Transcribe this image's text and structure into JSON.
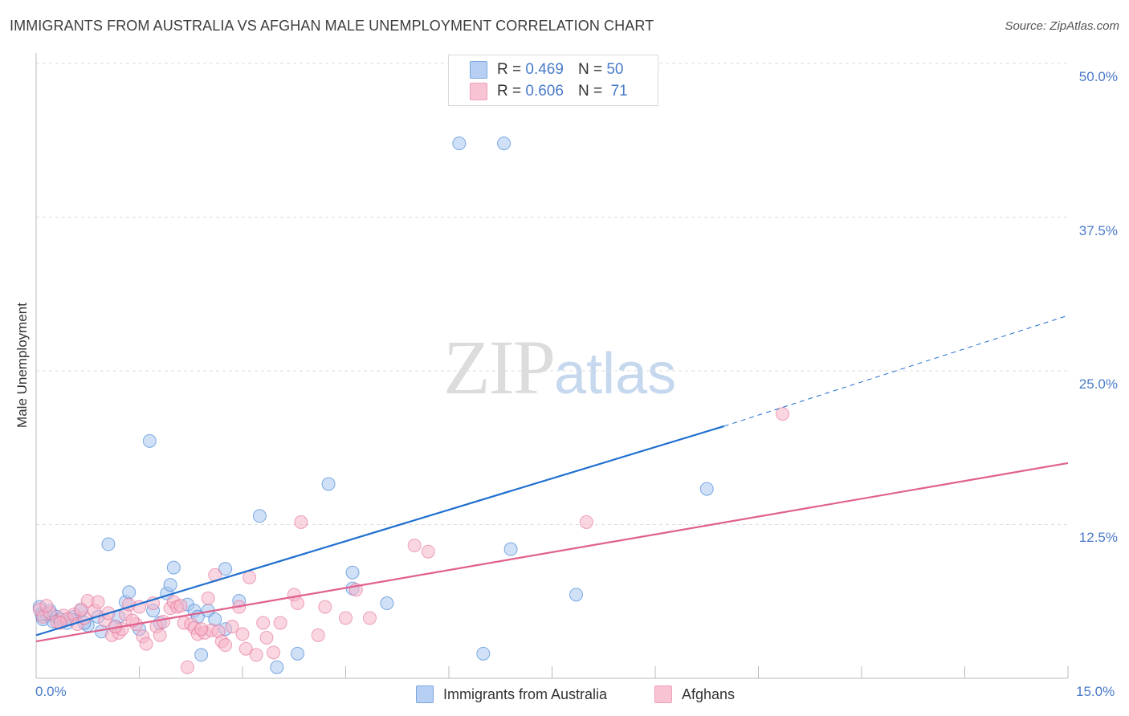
{
  "title": "IMMIGRANTS FROM AUSTRALIA VS AFGHAN MALE UNEMPLOYMENT CORRELATION CHART",
  "source": "Source: ZipAtlas.com",
  "watermark": {
    "zip": "ZIP",
    "atlas": "atlas"
  },
  "legend_top": {
    "rows": [
      {
        "r_label": "R =",
        "r_value": "0.469",
        "n_label": "N =",
        "n_value": "50"
      },
      {
        "r_label": "R =",
        "r_value": "0.606",
        "n_label": "N =",
        "n_value": "71"
      }
    ]
  },
  "colors": {
    "blue": "#1f6fcf",
    "blue_fill": "#a9c6ee",
    "pink": "#e0608c",
    "pink_fill": "#f6b4c8",
    "grid": "#dddddd",
    "axis": "#bbbbbb",
    "tick_text": "#4a7bc8"
  },
  "chart_data": {
    "type": "scatter",
    "title": "IMMIGRANTS FROM AUSTRALIA VS AFGHAN MALE UNEMPLOYMENT CORRELATION CHART",
    "xlabel": "",
    "ylabel": "Male Unemployment",
    "xlim": [
      0,
      15
    ],
    "ylim": [
      0,
      50
    ],
    "x_tick_labels": [
      "0.0%",
      "15.0%"
    ],
    "y_ticks": [
      12.5,
      25.0,
      37.5,
      50.0
    ],
    "y_tick_labels": [
      "12.5%",
      "25.0%",
      "37.5%",
      "50.0%"
    ],
    "grid": true,
    "legend": "bottom-center",
    "series": [
      {
        "name": "Immigrants from Australia",
        "color": "#1f6fcf",
        "fill": "#a9c6ee",
        "trend": {
          "x0": 0,
          "y0": 3.5,
          "x1": 10.0,
          "y1": 20.5,
          "dash_to_x": 15.0,
          "dash_to_y": 29.5
        },
        "points": [
          [
            0.05,
            5.8
          ],
          [
            0.1,
            4.8
          ],
          [
            0.15,
            5.2
          ],
          [
            0.2,
            5.5
          ],
          [
            0.25,
            4.6
          ],
          [
            0.3,
            5.0
          ],
          [
            0.35,
            4.8
          ],
          [
            0.45,
            4.5
          ],
          [
            0.55,
            5.0
          ],
          [
            0.65,
            5.5
          ],
          [
            0.75,
            4.3
          ],
          [
            0.9,
            5.0
          ],
          [
            0.95,
            3.8
          ],
          [
            1.05,
            10.9
          ],
          [
            1.15,
            4.2
          ],
          [
            1.2,
            5.0
          ],
          [
            1.3,
            6.2
          ],
          [
            1.35,
            7.0
          ],
          [
            1.5,
            4.0
          ],
          [
            1.65,
            19.3
          ],
          [
            1.7,
            5.5
          ],
          [
            1.8,
            4.5
          ],
          [
            1.9,
            6.9
          ],
          [
            1.95,
            7.6
          ],
          [
            2.0,
            9.0
          ],
          [
            2.2,
            6.0
          ],
          [
            2.3,
            5.5
          ],
          [
            2.35,
            5.0
          ],
          [
            2.4,
            1.9
          ],
          [
            2.5,
            5.5
          ],
          [
            2.6,
            4.8
          ],
          [
            2.75,
            4.0
          ],
          [
            2.75,
            8.9
          ],
          [
            2.95,
            6.3
          ],
          [
            3.25,
            13.2
          ],
          [
            3.5,
            0.9
          ],
          [
            3.8,
            2.0
          ],
          [
            4.25,
            15.8
          ],
          [
            4.6,
            7.3
          ],
          [
            4.6,
            8.6
          ],
          [
            5.1,
            6.1
          ],
          [
            6.15,
            43.5
          ],
          [
            6.5,
            2.0
          ],
          [
            6.8,
            43.5
          ],
          [
            6.9,
            10.5
          ],
          [
            7.85,
            6.8
          ],
          [
            9.75,
            15.4
          ],
          [
            0.08,
            5.2
          ],
          [
            0.5,
            4.8
          ],
          [
            0.7,
            4.5
          ]
        ]
      },
      {
        "name": "Afghans",
        "color": "#e0608c",
        "fill": "#f6b4c8",
        "trend": {
          "x0": 0,
          "y0": 3.0,
          "x1": 15.0,
          "y1": 17.5
        },
        "points": [
          [
            0.05,
            5.6
          ],
          [
            0.1,
            5.0
          ],
          [
            0.2,
            5.3
          ],
          [
            0.3,
            4.6
          ],
          [
            0.4,
            5.1
          ],
          [
            0.45,
            4.8
          ],
          [
            0.55,
            5.2
          ],
          [
            0.6,
            4.4
          ],
          [
            0.7,
            4.9
          ],
          [
            0.75,
            6.3
          ],
          [
            0.85,
            5.5
          ],
          [
            0.9,
            6.2
          ],
          [
            1.0,
            4.7
          ],
          [
            1.05,
            5.3
          ],
          [
            1.1,
            3.5
          ],
          [
            1.2,
            3.7
          ],
          [
            1.25,
            4.0
          ],
          [
            1.3,
            5.2
          ],
          [
            1.35,
            6.0
          ],
          [
            1.45,
            4.4
          ],
          [
            1.5,
            5.8
          ],
          [
            1.55,
            3.4
          ],
          [
            1.6,
            2.8
          ],
          [
            1.7,
            6.1
          ],
          [
            1.75,
            4.2
          ],
          [
            1.8,
            3.5
          ],
          [
            1.85,
            4.6
          ],
          [
            1.95,
            5.7
          ],
          [
            2.0,
            6.2
          ],
          [
            2.05,
            5.8
          ],
          [
            2.1,
            5.9
          ],
          [
            2.15,
            4.5
          ],
          [
            2.2,
            0.9
          ],
          [
            2.25,
            4.4
          ],
          [
            2.3,
            4.1
          ],
          [
            2.35,
            3.6
          ],
          [
            2.45,
            3.7
          ],
          [
            2.5,
            6.5
          ],
          [
            2.55,
            3.9
          ],
          [
            2.6,
            8.4
          ],
          [
            2.65,
            3.8
          ],
          [
            2.7,
            3.0
          ],
          [
            2.75,
            2.7
          ],
          [
            2.85,
            4.2
          ],
          [
            2.95,
            5.8
          ],
          [
            3.0,
            3.6
          ],
          [
            3.05,
            2.4
          ],
          [
            3.1,
            8.2
          ],
          [
            3.2,
            1.9
          ],
          [
            3.3,
            4.5
          ],
          [
            3.35,
            3.3
          ],
          [
            3.45,
            2.1
          ],
          [
            3.55,
            4.5
          ],
          [
            3.75,
            6.8
          ],
          [
            3.8,
            6.1
          ],
          [
            3.85,
            12.7
          ],
          [
            4.1,
            3.5
          ],
          [
            4.2,
            5.8
          ],
          [
            4.5,
            4.9
          ],
          [
            4.65,
            7.2
          ],
          [
            4.85,
            4.9
          ],
          [
            5.5,
            10.8
          ],
          [
            5.7,
            10.3
          ],
          [
            8.0,
            12.7
          ],
          [
            10.85,
            21.5
          ],
          [
            0.15,
            5.9
          ],
          [
            0.35,
            4.5
          ],
          [
            0.65,
            5.6
          ],
          [
            1.15,
            4.2
          ],
          [
            1.4,
            4.7
          ],
          [
            2.4,
            4.0
          ]
        ]
      }
    ]
  }
}
